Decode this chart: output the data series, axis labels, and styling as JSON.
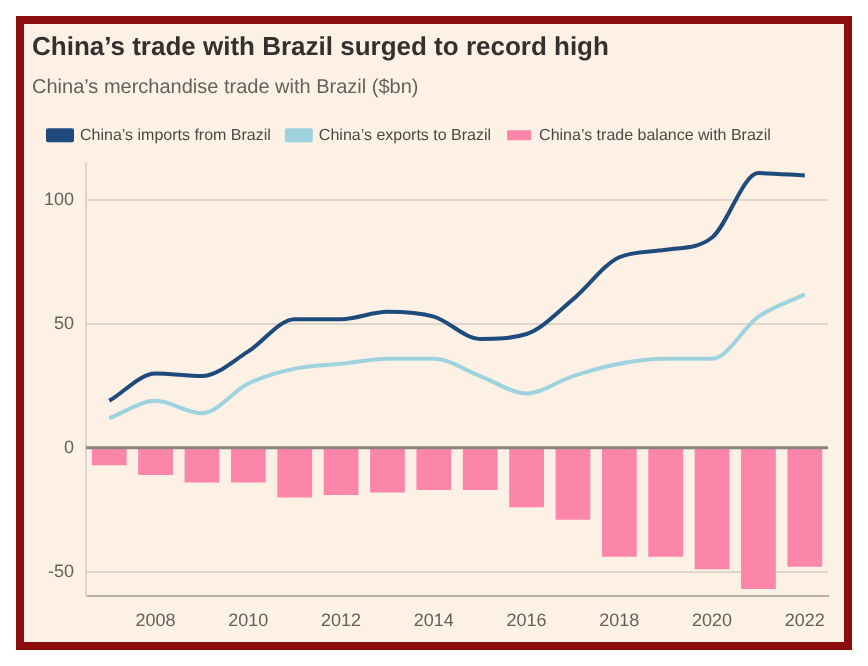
{
  "chart_data": {
    "type": "bar",
    "title": "China’s trade with Brazil surged to record high",
    "subtitle": "China’s merchandise trade with Brazil ($bn)",
    "categories": [
      null,
      "2008",
      null,
      "2010",
      null,
      "2012",
      null,
      "2014",
      null,
      "2016",
      null,
      "2018",
      null,
      "2020",
      null,
      "2022"
    ],
    "series": [
      {
        "name": "China’s imports from Brazil",
        "type": "line",
        "color": "#1f4a7c",
        "values": [
          19,
          30,
          29,
          39,
          52,
          52,
          55,
          53,
          44,
          46,
          60,
          77,
          80,
          85,
          111,
          110
        ]
      },
      {
        "name": "China’s exports to Brazil",
        "type": "line",
        "color": "#9fd2df",
        "values": [
          12,
          19,
          14,
          26,
          32,
          34,
          36,
          36,
          29,
          22,
          29,
          34,
          36,
          36,
          53,
          62
        ]
      },
      {
        "name": "China’s trade balance with Brazil",
        "color": "#fc85aa",
        "values": [
          -7,
          -11,
          -14,
          -14,
          -20,
          -19,
          -18,
          -17,
          -17,
          -24,
          -29,
          -44,
          -44,
          -49,
          -57,
          -48
        ]
      }
    ],
    "ylim": [
      -60,
      115
    ],
    "yticks": [
      -50,
      0,
      50,
      100
    ],
    "grid": "y",
    "legend": "top left",
    "ref_lines": [
      {
        "axis": "y",
        "value": 0,
        "color": "#8a847f"
      }
    ]
  }
}
